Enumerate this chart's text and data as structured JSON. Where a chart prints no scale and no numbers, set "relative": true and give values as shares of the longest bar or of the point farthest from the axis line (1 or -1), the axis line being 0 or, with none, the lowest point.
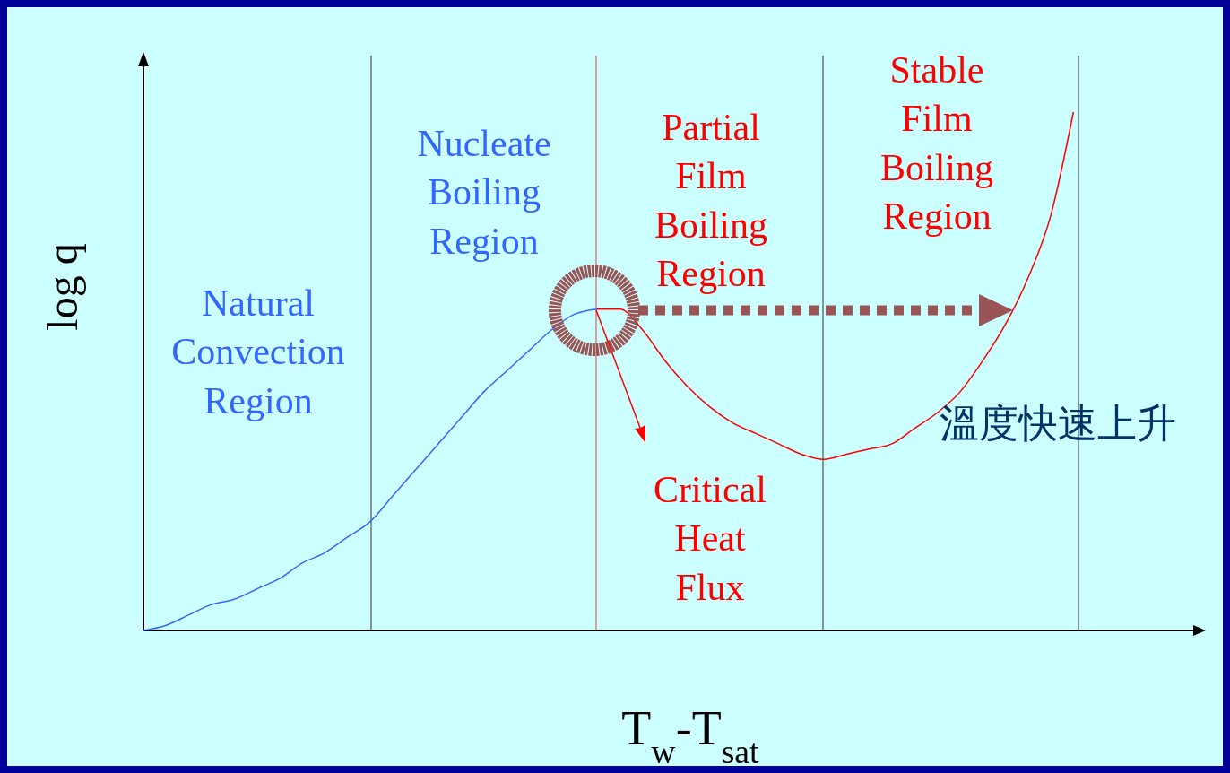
{
  "chart_data": {
    "type": "line",
    "relative": true,
    "xlabel": "T$_{w}$-T$_{sat}$",
    "ylabel": "log q",
    "marker": "none",
    "line_style": "solid",
    "categories": [
      null,
      null,
      null,
      null,
      null,
      null,
      null,
      null,
      null,
      null,
      null,
      null,
      null,
      null,
      null,
      null,
      null,
      null,
      null,
      null,
      null,
      null,
      null,
      null,
      null,
      null,
      null,
      null,
      null,
      null,
      null,
      null,
      null,
      null,
      null,
      null,
      null,
      null,
      null,
      null,
      null,
      null,
      null,
      null,
      null,
      null,
      null
    ],
    "series": [
      {
        "color": "#3366ff",
        "values": [
          0,
          0.01,
          0.03,
          0.05,
          0.06,
          0.08,
          0.1,
          0.13,
          0.15,
          0.18,
          0.21,
          0.26,
          0.31,
          0.36,
          0.41,
          0.46,
          0.5,
          0.54,
          0.58,
          0.61,
          0.62,
          null,
          null,
          null,
          null,
          null,
          null,
          null,
          null,
          null,
          null,
          null,
          null,
          null,
          null,
          null,
          null,
          null,
          null,
          null,
          null,
          null,
          null,
          null,
          null,
          null,
          null
        ]
      },
      {
        "color": "#ff0000",
        "values": [
          null,
          null,
          null,
          null,
          null,
          null,
          null,
          null,
          null,
          null,
          null,
          null,
          null,
          null,
          null,
          null,
          null,
          null,
          null,
          null,
          0.62,
          0.62,
          0.58,
          0.52,
          0.47,
          0.43,
          0.4,
          0.38,
          0.36,
          0.34,
          0.33,
          0.34,
          0.35,
          0.36,
          0.39,
          0.42,
          0.46,
          0.52,
          0.59,
          0.68,
          0.8,
          1,
          null,
          null,
          null,
          null,
          null
        ]
      }
    ],
    "annotations": [
      "Natural\nConvection\nRegion",
      "Nucleate\nBoiling\nRegion",
      "Partial\nFilm\nBoiling\nRegion",
      "Stable\nFilm\nBoiling\nRegion",
      "Critical\nHeat\nFlux",
      "溫度快速上升"
    ]
  }
}
